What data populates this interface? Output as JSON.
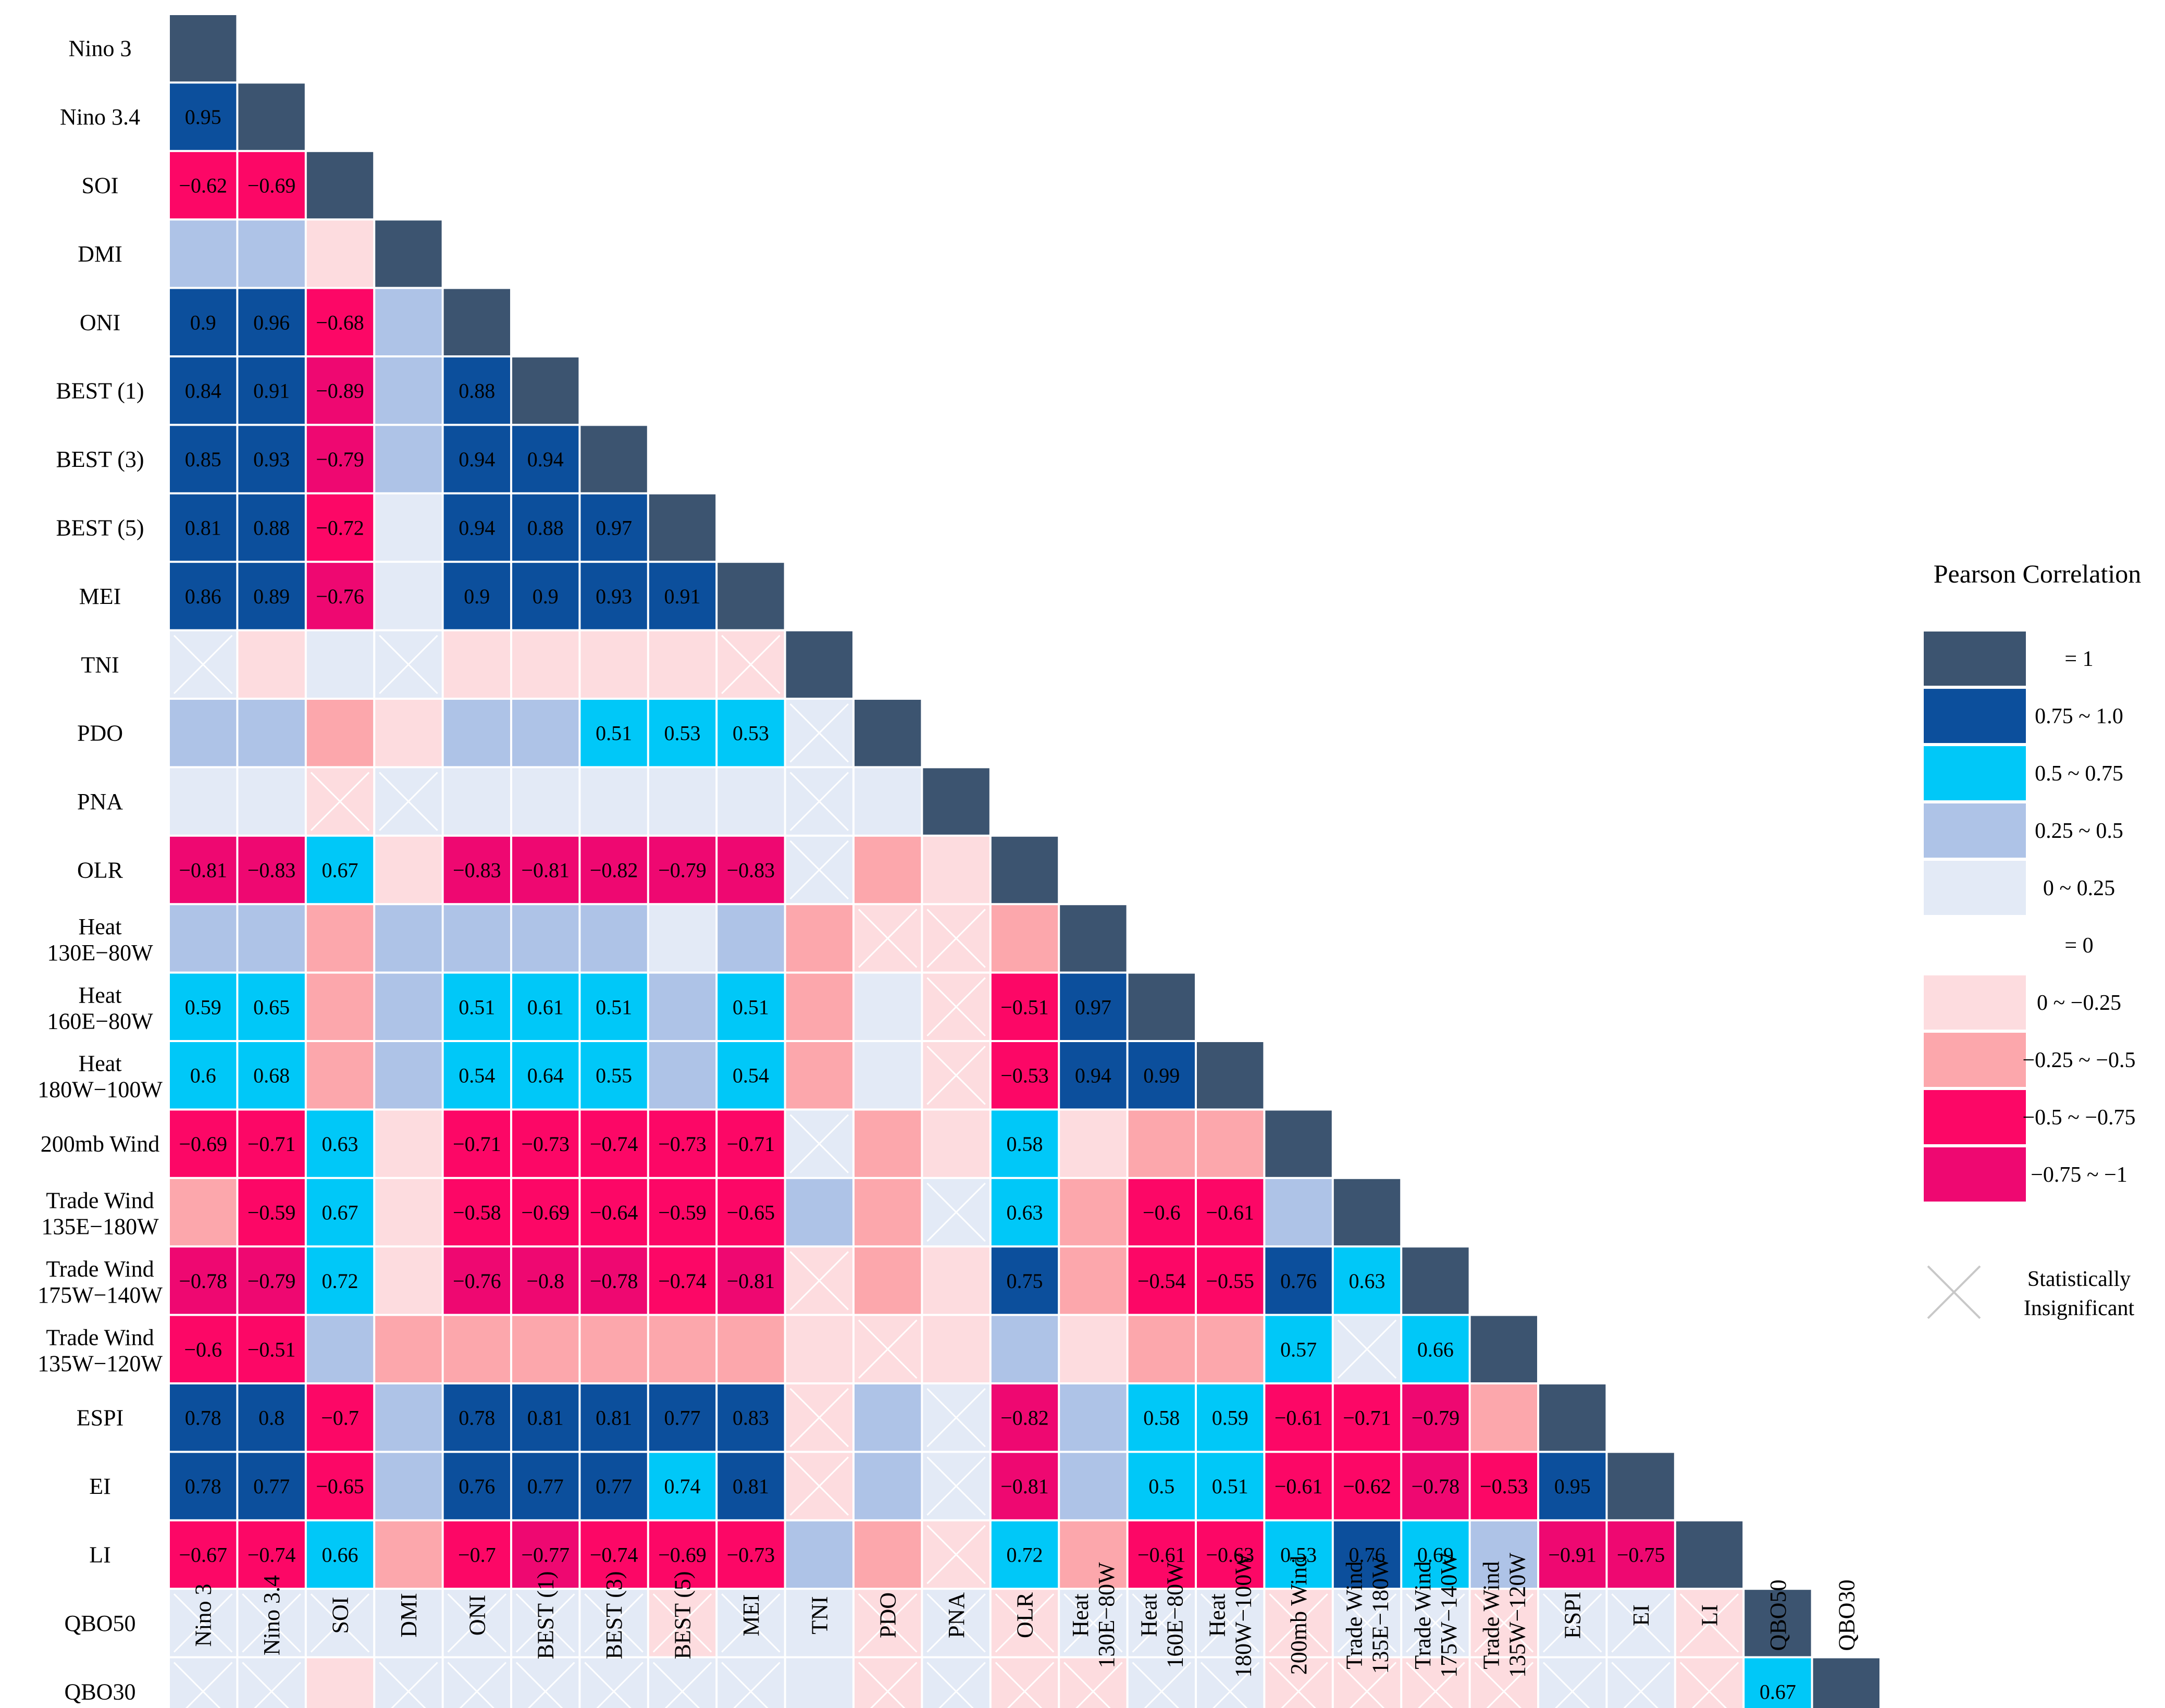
{
  "chart_data": {
    "type": "heatmap",
    "title": "",
    "variables": [
      [
        "Nino 3"
      ],
      [
        "Nino 3.4"
      ],
      [
        "SOI"
      ],
      [
        "DMI"
      ],
      [
        "ONI"
      ],
      [
        "BEST (1)"
      ],
      [
        "BEST (3)"
      ],
      [
        "BEST (5)"
      ],
      [
        "MEI"
      ],
      [
        "TNI"
      ],
      [
        "PDO"
      ],
      [
        "PNA"
      ],
      [
        "OLR"
      ],
      [
        "Heat",
        "130E−80W"
      ],
      [
        "Heat",
        "160E−80W"
      ],
      [
        "Heat",
        "180W−100W"
      ],
      [
        "200mb Wind"
      ],
      [
        "Trade Wind",
        "135E−180W"
      ],
      [
        "Trade Wind",
        "175W−140W"
      ],
      [
        "Trade Wind",
        "135W−120W"
      ],
      [
        "ESPI"
      ],
      [
        "EI"
      ],
      [
        "LI"
      ],
      [
        "QBO50"
      ],
      [
        "QBO30"
      ]
    ],
    "categories": [
      "eq1",
      "p4",
      "p3",
      "p2",
      "p1",
      "eq0",
      "n1",
      "n2",
      "n3",
      "n4"
    ],
    "cells": [
      [
        "eq1"
      ],
      [
        "p4",
        "eq1"
      ],
      [
        "n3",
        "n3",
        "eq1"
      ],
      [
        "p2",
        "p2",
        "n1",
        "eq1"
      ],
      [
        "p4",
        "p4",
        "n3",
        "p2",
        "eq1"
      ],
      [
        "p4",
        "p4",
        "n4",
        "p2",
        "p4",
        "eq1"
      ],
      [
        "p4",
        "p4",
        "n4",
        "p2",
        "p4",
        "p4",
        "eq1"
      ],
      [
        "p4",
        "p4",
        "n3",
        "p1",
        "p4",
        "p4",
        "p4",
        "eq1"
      ],
      [
        "p4",
        "p4",
        "n4",
        "p1",
        "p4",
        "p4",
        "p4",
        "p4",
        "eq1"
      ],
      [
        "p1x",
        "n1",
        "p1",
        "p1x",
        "n1",
        "n1",
        "n1",
        "n1",
        "n1x",
        "eq1"
      ],
      [
        "p2",
        "p2",
        "n2",
        "n1",
        "p2",
        "p2",
        "p3",
        "p3",
        "p3",
        "p1x",
        "eq1"
      ],
      [
        "p1",
        "p1",
        "n1x",
        "p1x",
        "p1",
        "p1",
        "p1",
        "p1",
        "p1",
        "p1x",
        "p1",
        "eq1"
      ],
      [
        "n4",
        "n4",
        "p3",
        "n1",
        "n4",
        "n4",
        "n4",
        "n4",
        "n4",
        "p1x",
        "n2",
        "n1",
        "eq1"
      ],
      [
        "p2",
        "p2",
        "n2",
        "p2",
        "p2",
        "p2",
        "p2",
        "p1",
        "p2",
        "n2",
        "n1x",
        "n1x",
        "n2",
        "eq1"
      ],
      [
        "p3",
        "p3",
        "n2",
        "p2",
        "p3",
        "p3",
        "p3",
        "p2",
        "p3",
        "n2",
        "p1",
        "n1x",
        "n3",
        "p4",
        "eq1"
      ],
      [
        "p3",
        "p3",
        "n2",
        "p2",
        "p3",
        "p3",
        "p3",
        "p2",
        "p3",
        "n2",
        "p1",
        "n1x",
        "n3",
        "p4",
        "p4",
        "eq1"
      ],
      [
        "n3",
        "n3",
        "p3",
        "n1",
        "n3",
        "n3",
        "n3",
        "n3",
        "n3",
        "p1x",
        "n2",
        "n1",
        "p3",
        "n1",
        "n2",
        "n2",
        "eq1"
      ],
      [
        "n2",
        "n3",
        "p3",
        "n1",
        "n3",
        "n3",
        "n3",
        "n3",
        "n3",
        "p2",
        "n2",
        "p1x",
        "p3",
        "n2",
        "n3",
        "n3",
        "p2",
        "eq1"
      ],
      [
        "n4",
        "n4",
        "p3",
        "n1",
        "n4",
        "n4",
        "n4",
        "n3",
        "n4",
        "n1x",
        "n2",
        "n1",
        "p4",
        "n2",
        "n3",
        "n3",
        "p4",
        "p3",
        "eq1"
      ],
      [
        "n3",
        "n3",
        "p2",
        "n2",
        "n2",
        "n2",
        "n2",
        "n2",
        "n2",
        "n1",
        "n1x",
        "n1",
        "p2",
        "n1",
        "n2",
        "n2",
        "p3",
        "p1x",
        "p3",
        "eq1"
      ],
      [
        "p4",
        "p4",
        "n3",
        "p2",
        "p4",
        "p4",
        "p4",
        "p4",
        "p4",
        "n1x",
        "p2",
        "p1x",
        "n4",
        "p2",
        "p3",
        "p3",
        "n3",
        "n3",
        "n4",
        "n2",
        "eq1"
      ],
      [
        "p4",
        "p4",
        "n3",
        "p2",
        "p4",
        "p4",
        "p4",
        "p3",
        "p4",
        "n1x",
        "p2",
        "p1x",
        "n4",
        "p2",
        "p3",
        "p3",
        "n3",
        "n3",
        "n4",
        "n3",
        "p4",
        "eq1"
      ],
      [
        "n3",
        "n3",
        "p3",
        "n2",
        "n3",
        "n4",
        "n3",
        "n3",
        "n3",
        "p2",
        "n2",
        "n1x",
        "p3",
        "n2",
        "n3",
        "n3",
        "p3",
        "p4",
        "p3",
        "p2",
        "n4",
        "n4",
        "eq1"
      ],
      [
        "p1x",
        "p1x",
        "p1x",
        "p1",
        "p1x",
        "p1x",
        "p1x",
        "n1x",
        "p1x",
        "p1",
        "n1x",
        "p1x",
        "n1x",
        "p1x",
        "p1x",
        "p1x",
        "n1x",
        "p1x",
        "p1x",
        "n1x",
        "p1x",
        "p1x",
        "n1x",
        "eq1"
      ],
      [
        "p1x",
        "p1x",
        "n1",
        "p1x",
        "p1x",
        "p1x",
        "p1x",
        "p1x",
        "p1x",
        "p1",
        "n1x",
        "p1x",
        "n1x",
        "n1x",
        "p1x",
        "p1x",
        "n1x",
        "n1x",
        "n1x",
        "n1x",
        "p1x",
        "p1x",
        "n1x",
        "p3",
        "eq1"
      ]
    ],
    "values": [
      [
        ""
      ],
      [
        "0.95",
        ""
      ],
      [
        "−0.62",
        "−0.69",
        ""
      ],
      [
        "",
        "",
        "",
        ""
      ],
      [
        "0.9",
        "0.96",
        "−0.68",
        "",
        ""
      ],
      [
        "0.84",
        "0.91",
        "−0.89",
        "",
        "0.88",
        ""
      ],
      [
        "0.85",
        "0.93",
        "−0.79",
        "",
        "0.94",
        "0.94",
        ""
      ],
      [
        "0.81",
        "0.88",
        "−0.72",
        "",
        "0.94",
        "0.88",
        "0.97",
        ""
      ],
      [
        "0.86",
        "0.89",
        "−0.76",
        "",
        "0.9",
        "0.9",
        "0.93",
        "0.91",
        ""
      ],
      [
        "",
        "",
        "",
        "",
        "",
        "",
        "",
        "",
        "",
        ""
      ],
      [
        "",
        "",
        "",
        "",
        "",
        "",
        "0.51",
        "0.53",
        "0.53",
        "",
        ""
      ],
      [
        "",
        "",
        "",
        "",
        "",
        "",
        "",
        "",
        "",
        "",
        "",
        ""
      ],
      [
        "−0.81",
        "−0.83",
        "0.67",
        "",
        "−0.83",
        "−0.81",
        "−0.82",
        "−0.79",
        "−0.83",
        "",
        "",
        "",
        ""
      ],
      [
        "",
        "",
        "",
        "",
        "",
        "",
        "",
        "",
        "",
        "",
        "",
        "",
        "",
        ""
      ],
      [
        "0.59",
        "0.65",
        "",
        "",
        "0.51",
        "0.61",
        "0.51",
        "",
        "0.51",
        "",
        "",
        "",
        "−0.51",
        "0.97",
        ""
      ],
      [
        "0.6",
        "0.68",
        "",
        "",
        "0.54",
        "0.64",
        "0.55",
        "",
        "0.54",
        "",
        "",
        "",
        "−0.53",
        "0.94",
        "0.99",
        ""
      ],
      [
        "−0.69",
        "−0.71",
        "0.63",
        "",
        "−0.71",
        "−0.73",
        "−0.74",
        "−0.73",
        "−0.71",
        "",
        "",
        "",
        "0.58",
        "",
        "",
        "",
        ""
      ],
      [
        "",
        "−0.59",
        "0.67",
        "",
        "−0.58",
        "−0.69",
        "−0.64",
        "−0.59",
        "−0.65",
        "",
        "",
        "",
        "0.63",
        "",
        "−0.6",
        "−0.61",
        "",
        ""
      ],
      [
        "−0.78",
        "−0.79",
        "0.72",
        "",
        "−0.76",
        "−0.8",
        "−0.78",
        "−0.74",
        "−0.81",
        "",
        "",
        "",
        "0.75",
        "",
        "−0.54",
        "−0.55",
        "0.76",
        "0.63",
        ""
      ],
      [
        "−0.6",
        "−0.51",
        "",
        "",
        "",
        "",
        "",
        "",
        "",
        "",
        "",
        "",
        "",
        "",
        "",
        "",
        "0.57",
        "",
        "0.66",
        ""
      ],
      [
        "0.78",
        "0.8",
        "−0.7",
        "",
        "0.78",
        "0.81",
        "0.81",
        "0.77",
        "0.83",
        "",
        "",
        "",
        "−0.82",
        "",
        "0.58",
        "0.59",
        "−0.61",
        "−0.71",
        "−0.79",
        "",
        ""
      ],
      [
        "0.78",
        "0.77",
        "−0.65",
        "",
        "0.76",
        "0.77",
        "0.77",
        "0.74",
        "0.81",
        "",
        "",
        "",
        "−0.81",
        "",
        "0.5",
        "0.51",
        "−0.61",
        "−0.62",
        "−0.78",
        "−0.53",
        "0.95",
        ""
      ],
      [
        "−0.67",
        "−0.74",
        "0.66",
        "",
        "−0.7",
        "−0.77",
        "−0.74",
        "−0.69",
        "−0.73",
        "",
        "",
        "",
        "0.72",
        "",
        "−0.61",
        "−0.63",
        "0.53",
        "0.76",
        "0.69",
        "",
        "−0.91",
        "−0.75",
        ""
      ],
      [
        "",
        "",
        "",
        "",
        "",
        "",
        "",
        "",
        "",
        "",
        "",
        "",
        "",
        "",
        "",
        "",
        "",
        "",
        "",
        "",
        "",
        "",
        "",
        ""
      ],
      [
        "",
        "",
        "",
        "",
        "",
        "",
        "",
        "",
        "",
        "",
        "",
        "",
        "",
        "",
        "",
        "",
        "",
        "",
        "",
        "",
        "",
        "",
        "",
        "0.67",
        ""
      ]
    ],
    "legend": {
      "title": "Pearson Correlation",
      "position": "right",
      "items": [
        {
          "key": "eq1",
          "label": "= 1",
          "color": "#3c5470"
        },
        {
          "key": "p4",
          "label": "0.75 ~ 1.0",
          "color": "#0c4f9c"
        },
        {
          "key": "p3",
          "label": "0.5 ~ 0.75",
          "color": "#00c8f8"
        },
        {
          "key": "p2",
          "label": "0.25 ~ 0.5",
          "color": "#aec3e7"
        },
        {
          "key": "p1",
          "label": "0 ~ 0.25",
          "color": "#e3eaf6"
        },
        {
          "key": "eq0",
          "label": "= 0",
          "color": "#ffffff"
        },
        {
          "key": "n1",
          "label": "0 ~ −0.25",
          "color": "#fddcdf"
        },
        {
          "key": "n2",
          "label": "−0.25 ~ −0.5",
          "color": "#fca7ac"
        },
        {
          "key": "n3",
          "label": "−0.5 ~ −0.75",
          "color": "#fc0766"
        },
        {
          "key": "n4",
          "label": "−0.75 ~ −1",
          "color": "#ee0871"
        }
      ],
      "insignificant_label": [
        "Statistically",
        "Insignificant"
      ],
      "insignificant_color": "#c8c8c8"
    }
  }
}
